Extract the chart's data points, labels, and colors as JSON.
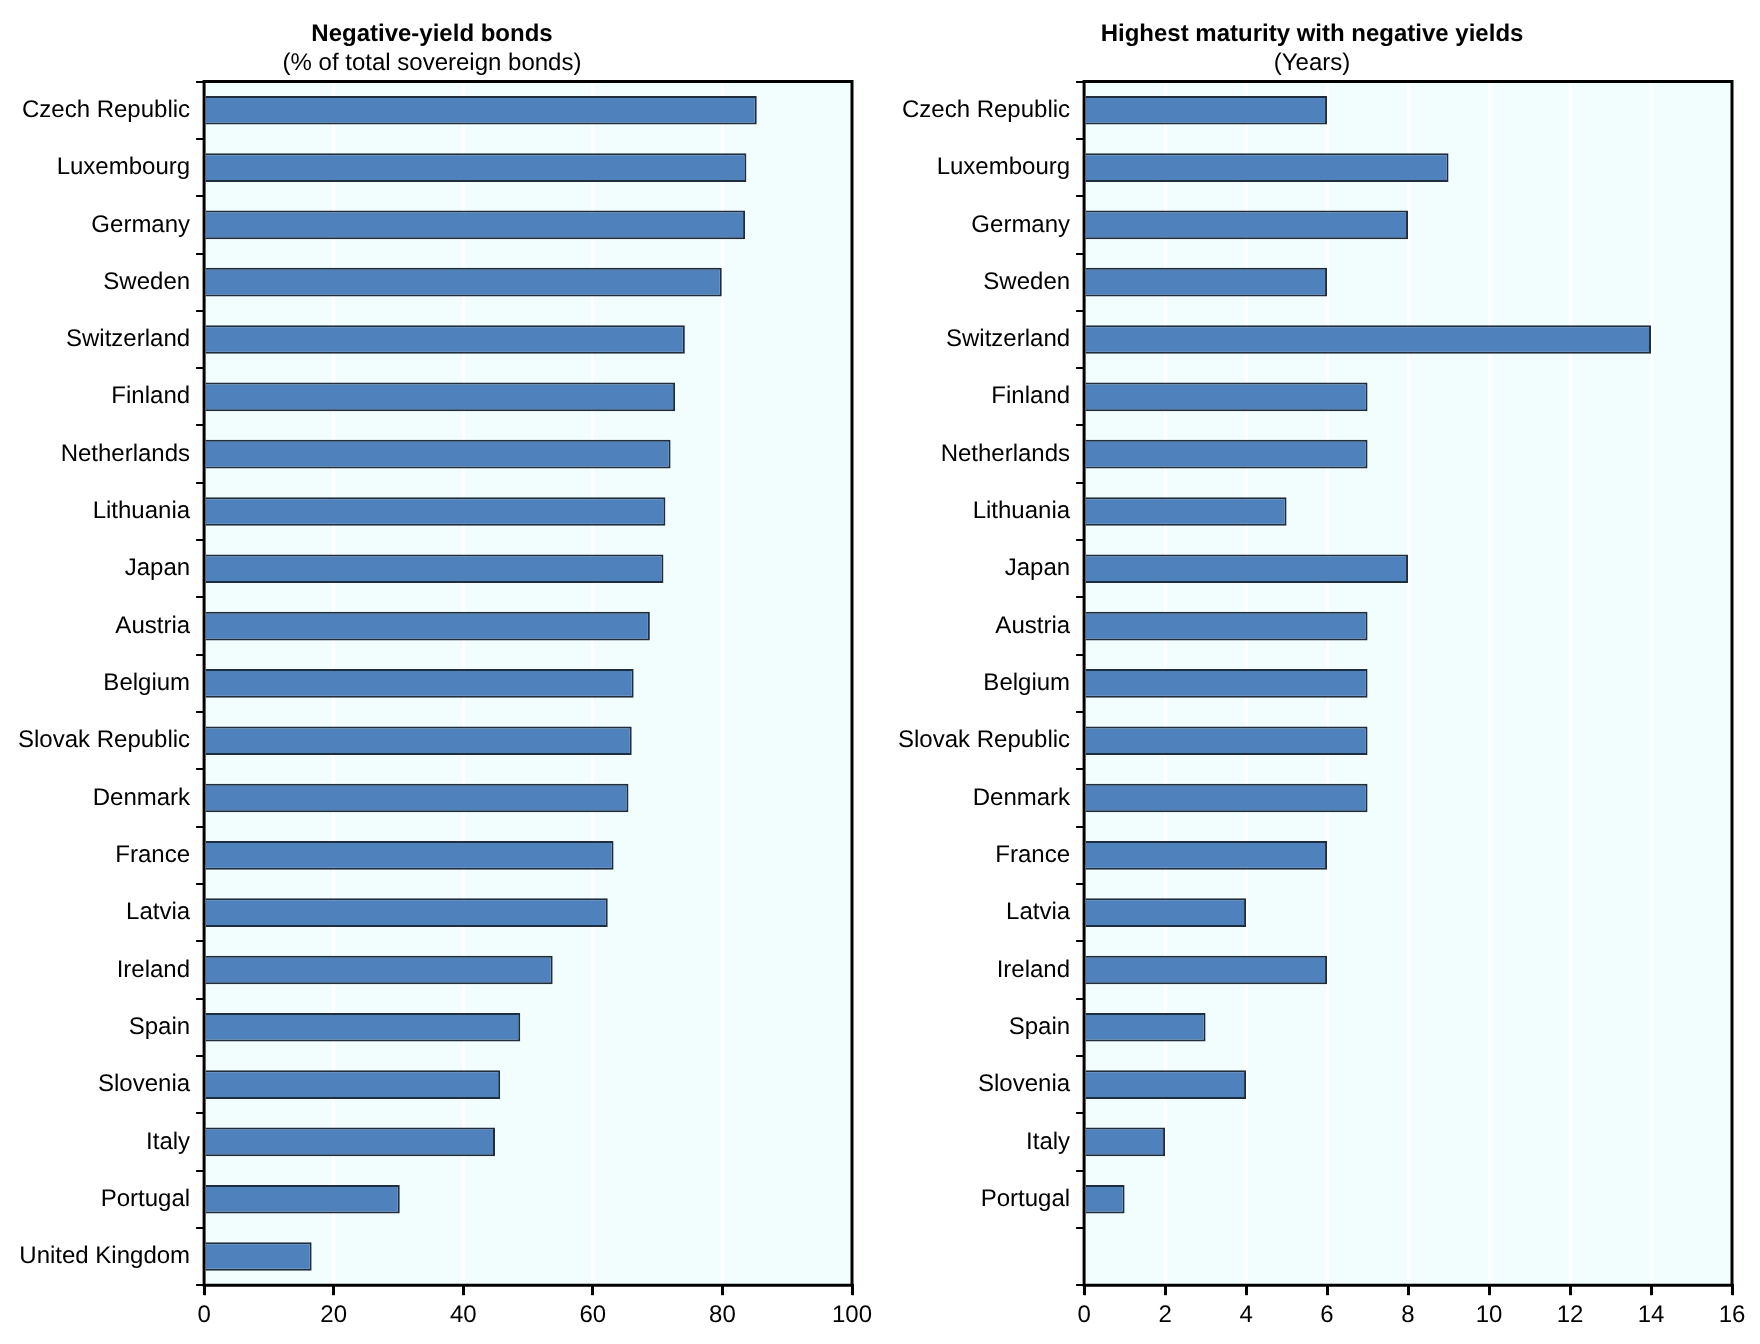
{
  "chart_data": [
    {
      "type": "bar",
      "orientation": "horizontal",
      "title": "Negative-yield bonds",
      "subtitle": "(% of total sovereign bonds)",
      "categories": [
        "Czech Republic",
        "Luxembourg",
        "Germany",
        "Sweden",
        "Switzerland",
        "Finland",
        "Netherlands",
        "Lithuania",
        "Japan",
        "Austria",
        "Belgium",
        "Slovak Republic",
        "Denmark",
        "France",
        "Latvia",
        "Ireland",
        "Spain",
        "Slovenia",
        "Italy",
        "Portugal",
        "United Kingdom"
      ],
      "values": [
        85.3,
        83.7,
        83.5,
        79.9,
        74.2,
        72.7,
        72.0,
        71.2,
        70.9,
        68.8,
        66.3,
        66.0,
        65.5,
        63.2,
        62.3,
        53.8,
        48.8,
        45.7,
        44.9,
        30.2,
        16.6
      ],
      "color": "#4f81bd",
      "xlim": [
        0,
        100
      ],
      "xticks": [
        0,
        20,
        40,
        60,
        80,
        100
      ],
      "grid": "x"
    },
    {
      "type": "bar",
      "orientation": "horizontal",
      "title": "Highest maturity with negative yields",
      "subtitle": "(Years)",
      "categories": [
        "Czech Republic",
        "Luxembourg",
        "Germany",
        "Sweden",
        "Switzerland",
        "Finland",
        "Netherlands",
        "Lithuania",
        "Japan",
        "Austria",
        "Belgium",
        "Slovak Republic",
        "Denmark",
        "France",
        "Latvia",
        "Ireland",
        "Spain",
        "Slovenia",
        "Italy",
        "Portugal",
        null
      ],
      "values": [
        6,
        9,
        8,
        6,
        14,
        7,
        7,
        5,
        8,
        7,
        7,
        7,
        7,
        6,
        4,
        6,
        3,
        4,
        2,
        1,
        null
      ],
      "color": "#4f81bd",
      "xlim": [
        0,
        16
      ],
      "xticks": [
        0,
        2,
        4,
        6,
        8,
        10,
        12,
        14,
        16
      ],
      "grid": "x"
    }
  ]
}
